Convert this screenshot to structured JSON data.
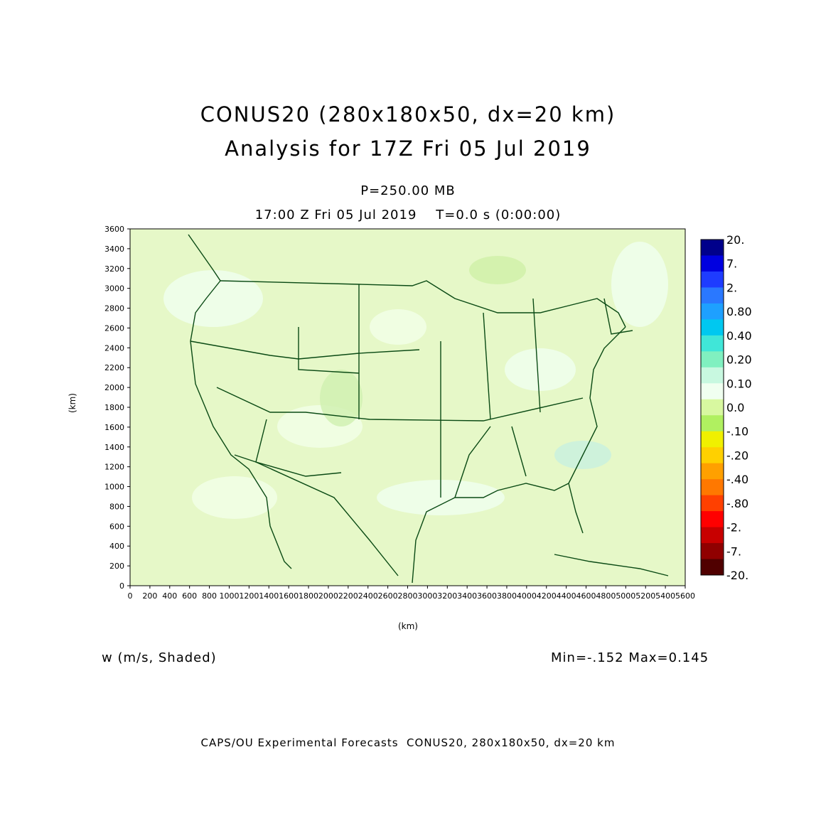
{
  "header": {
    "title_line1": "CONUS20 (280x180x50, dx=20 km)",
    "title_line2": "Analysis for 17Z Fri 05 Jul 2019",
    "level": "P=250.00 MB",
    "valid_time": "17:00 Z Fri 05 Jul 2019    T=0.0 s (0:00:00)"
  },
  "axes": {
    "x_label": "(km)",
    "y_label": "(km)",
    "x_ticks": [
      "0",
      "200",
      "400",
      "600",
      "800",
      "1000",
      "1200",
      "1400",
      "1600",
      "1800",
      "2000",
      "2200",
      "2400",
      "2600",
      "2800",
      "3000",
      "3200",
      "3400",
      "3600",
      "3800",
      "4000",
      "4200",
      "4400",
      "4600",
      "4800",
      "5000",
      "5200",
      "5400",
      "5600"
    ],
    "y_ticks": [
      "0",
      "200",
      "400",
      "600",
      "800",
      "1000",
      "1200",
      "1400",
      "1600",
      "1800",
      "2000",
      "2200",
      "2400",
      "2600",
      "2800",
      "3000",
      "3200",
      "3400",
      "3600"
    ],
    "x_range": [
      0,
      5600
    ],
    "y_range": [
      0,
      3600
    ]
  },
  "colorbar": {
    "labels": [
      "20.",
      "7.",
      "2.",
      "0.80",
      "0.40",
      "0.20",
      "0.10",
      "0.0",
      "-.10",
      "-.20",
      "-.40",
      "-.80",
      "-2.",
      "-7.",
      "-20."
    ],
    "colors": [
      "#00008b",
      "#0000e0",
      "#1e3cff",
      "#2a78ff",
      "#1ea0ff",
      "#00c8f0",
      "#40e6d8",
      "#80f0c0",
      "#c8f8e0",
      "#f0fff0",
      "#d8f8a0",
      "#b0f060",
      "#f0f000",
      "#ffd000",
      "#ffa000",
      "#ff7800",
      "#ff4000",
      "#ff0000",
      "#c80000",
      "#900000",
      "#500000"
    ]
  },
  "field": {
    "label": "w (m/s, Shaded)",
    "minmax": "Min=-.152 Max=0.145"
  },
  "map": {
    "background_color": "#e6f8c8",
    "boundary_color": "#0a4a14"
  },
  "footer": {
    "text": "CAPS/OU Experimental Forecasts  CONUS20, 280x180x50, dx=20 km"
  }
}
